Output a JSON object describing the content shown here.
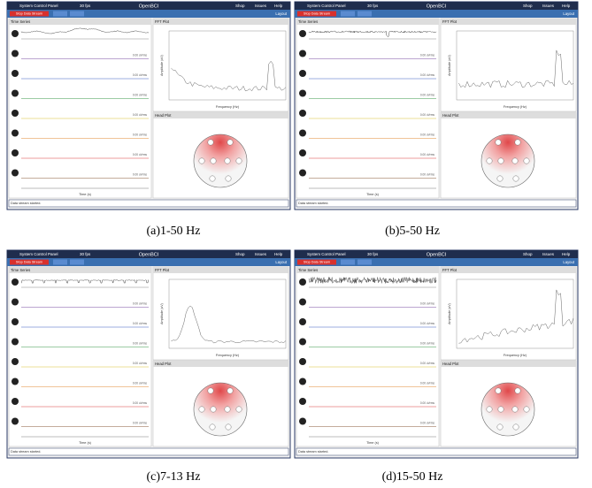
{
  "ui": {
    "control_panel": "System Control Panel",
    "fps": "30 fps",
    "logo": "OpenBCI",
    "menu": [
      "Shop",
      "Issues",
      "Help"
    ],
    "stop": "Stop Data Stream",
    "layout": "Layout",
    "time_series": "Time Series",
    "fft_plot": "FFT Plot",
    "head_plot": "Head Plot",
    "freq_label": "Frequency (Hz)",
    "amp_label": "Amplitude (uV)",
    "time_label": "Time (s)",
    "status": "Data stream started.",
    "uvrms": "0.00 uVrms"
  },
  "panels": [
    {
      "caption": "(a)1-50 Hz"
    },
    {
      "caption": "(b)5-50 Hz"
    },
    {
      "caption": "(c)7-13 Hz"
    },
    {
      "caption": "(d)15-50 Hz"
    }
  ]
}
